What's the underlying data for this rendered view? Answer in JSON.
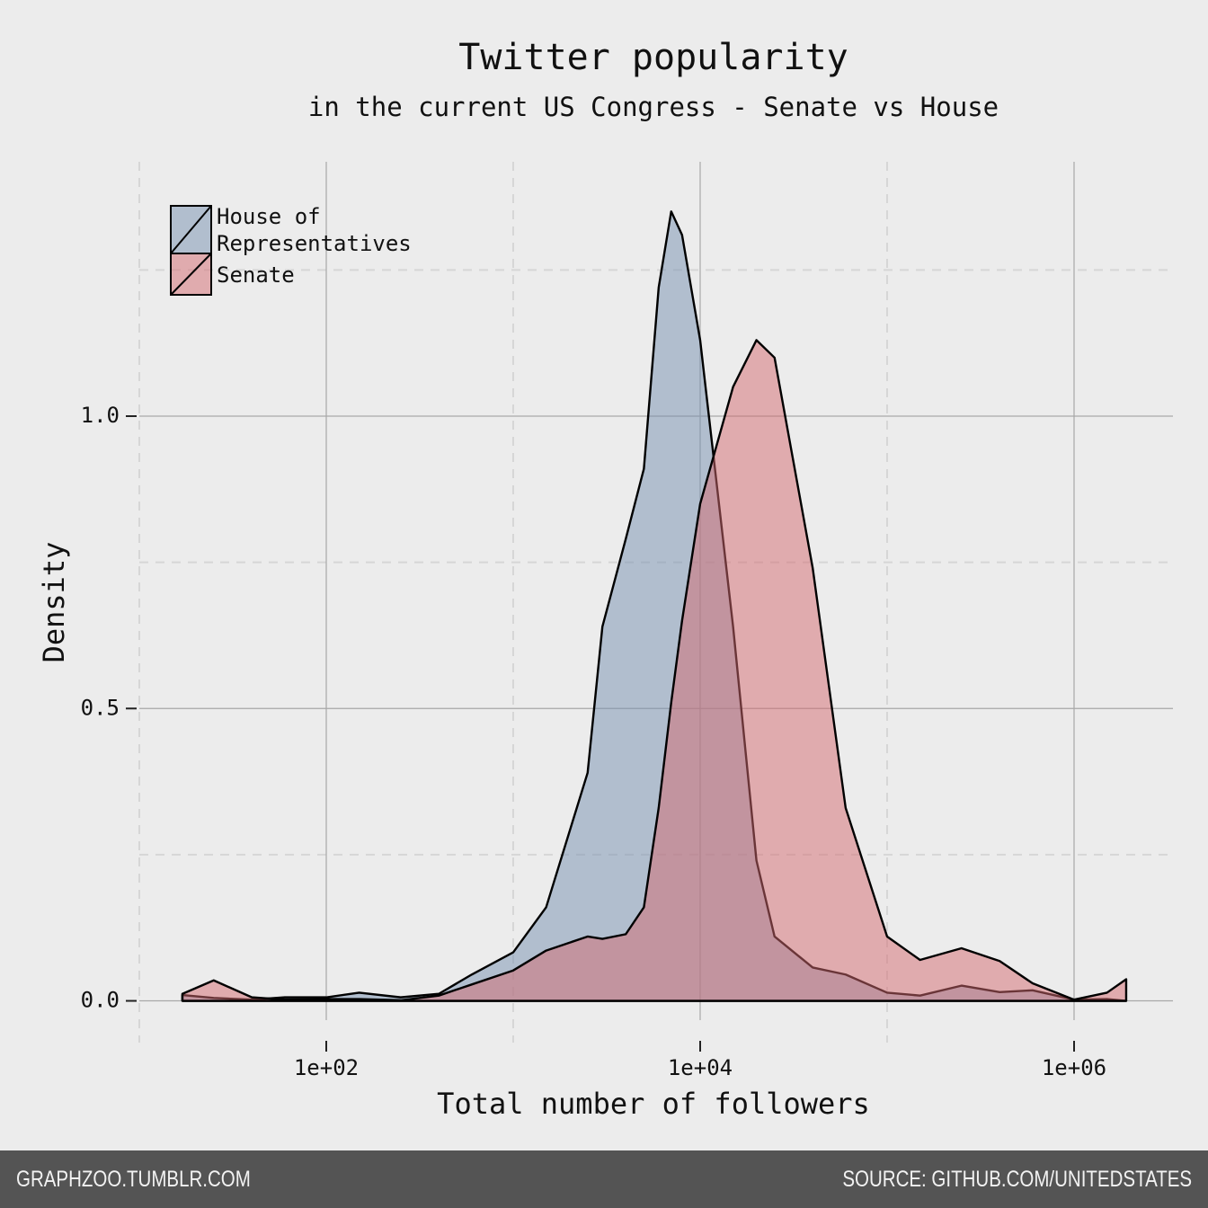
{
  "chart_data": {
    "type": "area",
    "title": "Twitter popularity",
    "subtitle": "in the current US Congress - Senate vs House",
    "x_label": "Total number of followers",
    "y_label": "Density",
    "x_scale": "log",
    "grid": true,
    "legend": "top-left",
    "x": [
      17,
      25,
      40,
      60,
      100,
      150,
      250,
      400,
      600,
      1000,
      1500,
      2500,
      3000,
      4000,
      5000,
      6000,
      7000,
      8000,
      10000,
      15000,
      20000,
      25000,
      40000,
      60000,
      100000,
      150000,
      250000,
      400000,
      600000,
      1000000,
      1500000,
      1900000
    ],
    "series": [
      {
        "name": "House of Representatives",
        "color": "#7590b0",
        "values": [
          0.01,
          0.005,
          0.002,
          0.006,
          0.006,
          0.014,
          0.006,
          0.012,
          0.045,
          0.083,
          0.16,
          0.39,
          0.64,
          0.79,
          0.91,
          1.22,
          1.35,
          1.31,
          1.13,
          0.64,
          0.24,
          0.11,
          0.057,
          0.045,
          0.014,
          0.009,
          0.026,
          0.015,
          0.018,
          0.002,
          0.003,
          0
        ]
      },
      {
        "name": "Senate",
        "color": "#d46a70",
        "values": [
          0.012,
          0.035,
          0.006,
          0.002,
          0.003,
          0.003,
          0.001,
          0.009,
          0.028,
          0.052,
          0.086,
          0.11,
          0.106,
          0.114,
          0.16,
          0.33,
          0.51,
          0.65,
          0.85,
          1.05,
          1.13,
          1.1,
          0.74,
          0.33,
          0.11,
          0.07,
          0.09,
          0.068,
          0.03,
          0.002,
          0.014,
          0.037
        ]
      }
    ],
    "xlim": [
      10,
      3380000
    ],
    "ylim": [
      -0.033,
      1.435
    ],
    "xticks": [
      {
        "value": 100,
        "label": "1e+02"
      },
      {
        "value": 10000,
        "label": "1e+04"
      },
      {
        "value": 1000000,
        "label": "1e+06"
      }
    ],
    "yticks": [
      {
        "value": 0,
        "label": "0.0"
      },
      0.5,
      {
        "value": 1,
        "label": "1.0"
      }
    ]
  },
  "footer": {
    "left": "GRAPHZOO.TUMBLR.COM",
    "right": "SOURCE: GITHUB.COM/UNITEDSTATES"
  }
}
